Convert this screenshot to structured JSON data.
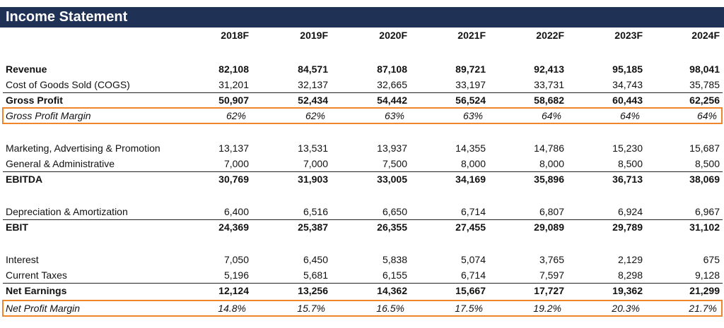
{
  "header": {
    "title": "Income Statement"
  },
  "table": {
    "columns": [
      "2018F",
      "2019F",
      "2020F",
      "2021F",
      "2022F",
      "2023F",
      "2024F"
    ],
    "rows": [
      {
        "label": "Revenue",
        "values": [
          "82,108",
          "84,571",
          "87,108",
          "89,721",
          "92,413",
          "95,185",
          "98,041"
        ]
      },
      {
        "label": "Cost of Goods Sold (COGS)",
        "values": [
          "31,201",
          "32,137",
          "32,665",
          "33,197",
          "33,731",
          "34,743",
          "35,785"
        ]
      },
      {
        "label": "Gross Profit",
        "values": [
          "50,907",
          "52,434",
          "54,442",
          "56,524",
          "58,682",
          "60,443",
          "62,256"
        ]
      },
      {
        "label": "Gross Profit Margin",
        "values": [
          "62%",
          "62%",
          "63%",
          "63%",
          "64%",
          "64%",
          "64%"
        ]
      },
      {
        "label": "Marketing, Advertising & Promotion",
        "values": [
          "13,137",
          "13,531",
          "13,937",
          "14,355",
          "14,786",
          "15,230",
          "15,687"
        ]
      },
      {
        "label": "General & Administrative",
        "values": [
          "7,000",
          "7,000",
          "7,500",
          "8,000",
          "8,000",
          "8,500",
          "8,500"
        ]
      },
      {
        "label": "EBITDA",
        "values": [
          "30,769",
          "31,903",
          "33,005",
          "34,169",
          "35,896",
          "36,713",
          "38,069"
        ]
      },
      {
        "label": "Depreciation & Amortization",
        "values": [
          "6,400",
          "6,516",
          "6,650",
          "6,714",
          "6,807",
          "6,924",
          "6,967"
        ]
      },
      {
        "label": "EBIT",
        "values": [
          "24,369",
          "25,387",
          "26,355",
          "27,455",
          "29,089",
          "29,789",
          "31,102"
        ]
      },
      {
        "label": "Interest",
        "values": [
          "7,050",
          "6,450",
          "5,838",
          "5,074",
          "3,765",
          "2,129",
          "675"
        ]
      },
      {
        "label": "Current Taxes",
        "values": [
          "5,196",
          "5,681",
          "6,155",
          "6,714",
          "7,597",
          "8,298",
          "9,128"
        ]
      },
      {
        "label": "Net Earnings",
        "values": [
          "12,124",
          "13,256",
          "14,362",
          "15,667",
          "17,727",
          "19,362",
          "21,299"
        ]
      },
      {
        "label": "Net Profit Margin",
        "values": [
          "14.8%",
          "15.7%",
          "16.5%",
          "17.5%",
          "19.2%",
          "20.3%",
          "21.7%"
        ]
      }
    ]
  }
}
